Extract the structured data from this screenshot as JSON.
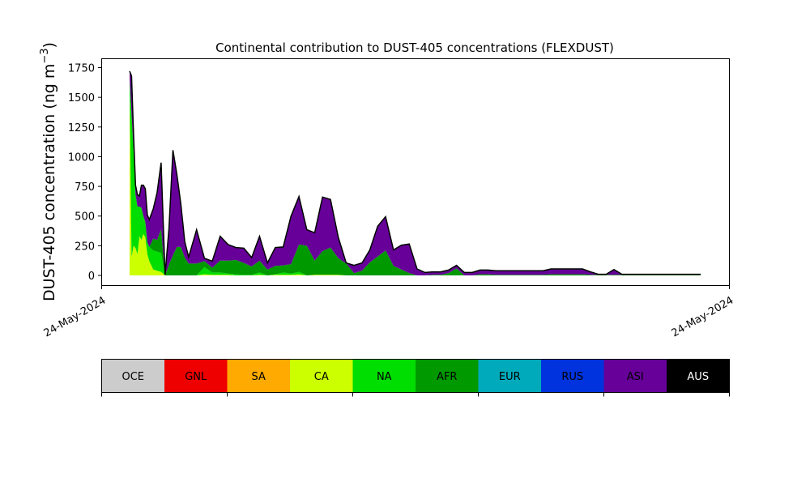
{
  "chart_data": {
    "type": "area",
    "stacked": true,
    "title": "Continental contribution to DUST-405 concentrations (FLEXDUST)",
    "ylabel": "DUST-405 concentration (ng m",
    "ylabel_unit_sup": "−3",
    "ylabel_close": ")",
    "xlabel": "",
    "x_tick_labels": [
      "24-May-2024",
      "24-May-2024"
    ],
    "ylim": [
      -85,
      1825
    ],
    "y_ticks": [
      0,
      250,
      500,
      750,
      1000,
      1250,
      1500,
      1750
    ],
    "grid": false,
    "x": [
      0.0,
      0.5,
      1.0,
      1.5,
      2.0,
      2.5,
      3.0,
      3.5,
      4.0,
      4.5,
      5.0,
      6.0,
      7.0,
      8.0,
      9.0,
      10.0,
      11.0,
      12.0,
      13.0,
      14.0,
      15.0,
      17.0,
      19.0,
      21.0,
      23.0,
      25.0,
      27.0,
      29.0,
      31.0,
      33.0,
      35.0,
      37.0,
      39.0,
      41.0,
      43.0,
      45.0,
      47.0,
      49.0,
      51.0,
      53.0,
      55.0,
      57.0,
      59.0,
      61.0,
      63.0,
      65.0,
      67.0,
      69.0,
      71.0,
      73.0,
      75.0,
      77.0,
      79.0,
      81.0,
      83.0,
      85.0,
      87.0,
      89.0,
      91.0,
      93.0,
      95.0,
      97.0,
      99.0,
      101.0,
      103.0,
      105.0,
      107.0,
      109.0,
      111.0,
      113.0,
      115.0,
      117.0,
      119.0,
      121.0,
      123.0,
      125.0,
      126.0,
      127.0,
      128.0,
      129.0,
      130.0,
      131.0,
      133.0,
      135.0,
      137.0,
      139.0,
      141.0,
      143.0,
      145.0
    ],
    "series": [
      {
        "name": "CA",
        "color": "#ccff00",
        "values": [
          1620,
          155,
          250,
          230,
          180,
          330,
          300,
          350,
          320,
          180,
          120,
          50,
          40,
          30,
          0,
          0,
          0,
          0,
          0,
          0,
          0,
          0,
          10,
          5,
          5,
          5,
          0,
          0,
          0,
          5,
          0,
          5,
          5,
          5,
          10,
          0,
          5,
          5,
          5,
          5,
          0,
          0,
          0,
          0,
          0,
          0,
          0,
          0,
          0,
          0,
          0,
          0,
          0,
          0,
          0,
          0,
          0,
          0,
          0,
          0,
          0,
          0,
          0,
          0,
          0,
          0,
          0,
          0,
          0,
          0,
          0,
          0,
          0,
          0,
          0,
          0,
          0,
          0,
          0,
          0,
          0,
          0,
          0,
          0,
          0,
          0,
          0,
          0,
          0
        ]
      },
      {
        "name": "NA",
        "color": "#00dd00",
        "values": [
          40,
          1200,
          800,
          450,
          400,
          250,
          270,
          150,
          130,
          100,
          120,
          160,
          160,
          160,
          0,
          0,
          0,
          0,
          0,
          0,
          0,
          0,
          60,
          20,
          20,
          10,
          10,
          5,
          5,
          20,
          0,
          5,
          20,
          10,
          20,
          0,
          0,
          0,
          0,
          0,
          0,
          0,
          0,
          0,
          0,
          0,
          0,
          0,
          0,
          0,
          0,
          0,
          0,
          0,
          0,
          0,
          0,
          0,
          0,
          0,
          0,
          0,
          0,
          0,
          0,
          0,
          0,
          0,
          0,
          0,
          0,
          0,
          0,
          0,
          0,
          0,
          0,
          0,
          0,
          0,
          0,
          0,
          0,
          0,
          0,
          0,
          0,
          0,
          0
        ]
      },
      {
        "name": "AFR",
        "color": "#009900",
        "values": [
          0,
          0,
          0,
          0,
          0,
          0,
          0,
          0,
          0,
          0,
          0,
          100,
          100,
          200,
          0,
          90,
          170,
          240,
          240,
          150,
          100,
          100,
          50,
          40,
          100,
          110,
          120,
          100,
          70,
          100,
          50,
          70,
          60,
          80,
          230,
          250,
          120,
          200,
          230,
          140,
          100,
          20,
          40,
          110,
          160,
          210,
          80,
          50,
          20,
          0,
          0,
          5,
          5,
          20,
          60,
          0,
          0,
          10,
          10,
          5,
          5,
          5,
          5,
          5,
          5,
          5,
          10,
          10,
          10,
          10,
          10,
          5,
          5,
          5,
          5,
          5,
          5,
          5,
          5,
          5,
          5,
          5,
          5,
          5,
          5,
          5,
          5,
          5,
          5
        ]
      },
      {
        "name": "ASI",
        "color": "#660099",
        "values": [
          50,
          310,
          120,
          70,
          90,
          80,
          180,
          250,
          270,
          220,
          220,
          240,
          390,
          550,
          0,
          300,
          880,
          610,
          360,
          130,
          50,
          280,
          20,
          50,
          200,
          130,
          100,
          120,
          70,
          200,
          50,
          150,
          150,
          400,
          400,
          130,
          230,
          450,
          400,
          170,
          0,
          60,
          60,
          100,
          250,
          280,
          130,
          200,
          240,
          50,
          20,
          20,
          20,
          20,
          20,
          20,
          20,
          30,
          30,
          30,
          30,
          30,
          30,
          30,
          30,
          30,
          40,
          40,
          40,
          40,
          40,
          20,
          0,
          0,
          40,
          0,
          0,
          0,
          0,
          0,
          0,
          0,
          0,
          0,
          0,
          0,
          0,
          0,
          0
        ]
      },
      {
        "name": "AUS",
        "color": "#000000",
        "values": [
          10,
          15,
          15,
          10,
          10,
          10,
          10,
          10,
          10,
          10,
          10,
          10,
          10,
          10,
          5,
          5,
          5,
          5,
          5,
          5,
          5,
          5,
          5,
          5,
          5,
          5,
          5,
          5,
          5,
          5,
          5,
          5,
          5,
          5,
          5,
          5,
          5,
          5,
          5,
          5,
          5,
          5,
          5,
          5,
          5,
          5,
          5,
          5,
          5,
          5,
          5,
          5,
          5,
          5,
          5,
          5,
          5,
          5,
          5,
          5,
          5,
          5,
          5,
          5,
          5,
          5,
          5,
          5,
          5,
          5,
          5,
          5,
          5,
          5,
          5,
          5,
          5,
          5,
          5,
          5,
          5,
          5,
          5,
          5,
          5,
          5,
          5,
          5,
          5
        ]
      }
    ],
    "legend_placement": "bottom color bar",
    "legend": [
      {
        "label": "OCE",
        "color": "#cccccc",
        "text_color": "#000000"
      },
      {
        "label": "GNL",
        "color": "#ee0000",
        "text_color": "#000000"
      },
      {
        "label": "SA",
        "color": "#ffaa00",
        "text_color": "#000000"
      },
      {
        "label": "CA",
        "color": "#ccff00",
        "text_color": "#000000"
      },
      {
        "label": "NA",
        "color": "#00dd00",
        "text_color": "#000000"
      },
      {
        "label": "AFR",
        "color": "#009900",
        "text_color": "#000000"
      },
      {
        "label": "EUR",
        "color": "#00aabb",
        "text_color": "#000000"
      },
      {
        "label": "RUS",
        "color": "#0033dd",
        "text_color": "#000000"
      },
      {
        "label": "ASI",
        "color": "#660099",
        "text_color": "#000000"
      },
      {
        "label": "AUS",
        "color": "#000000",
        "text_color": "#ffffff"
      }
    ]
  }
}
